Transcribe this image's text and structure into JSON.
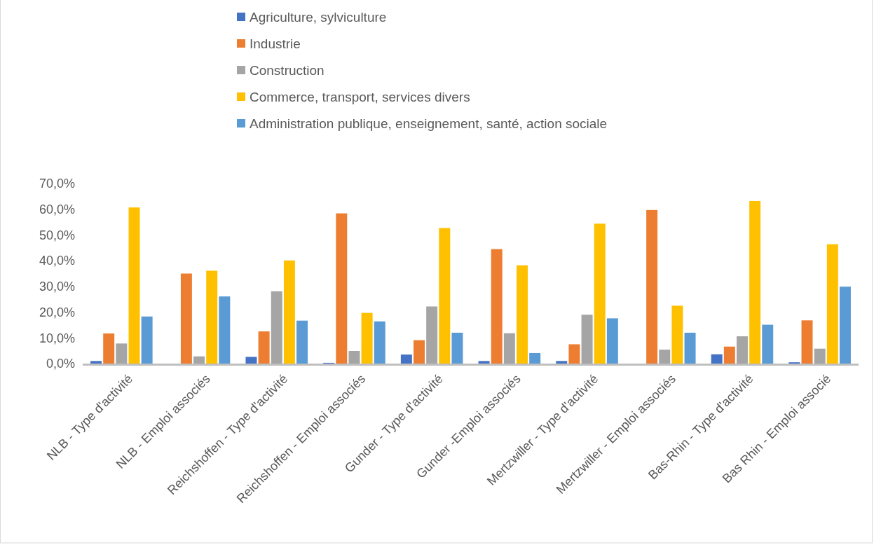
{
  "chart_data": {
    "type": "bar",
    "categories": [
      "NLB - Type d'activité",
      "NLB - Emploi associés",
      "Reichshoffen - Type d'activité",
      "Reichshoffen - Emploi associés",
      "Gunder - Type d'activité",
      "Gunder -Emploi associés",
      "Mertzwiller - Type d'activité",
      "Mertzwiller - Emploi associés",
      "Bas-Rhin - Type d'activité",
      "Bas Rhin - Emploi associé"
    ],
    "series": [
      {
        "name": "Agriculture, sylviculture",
        "color": "#4472c4",
        "values": [
          1.0,
          0,
          2.6,
          0.3,
          3.5,
          1.0,
          1.0,
          0,
          3.6,
          0.5
        ]
      },
      {
        "name": "Industrie",
        "color": "#ed7d31",
        "values": [
          11.7,
          35.0,
          12.5,
          58.4,
          9.1,
          44.5,
          7.5,
          59.7,
          6.6,
          16.8
        ]
      },
      {
        "name": "Construction",
        "color": "#a5a5a5",
        "values": [
          7.8,
          2.8,
          28.1,
          4.9,
          22.2,
          11.8,
          19.0,
          5.4,
          10.6,
          5.8
        ]
      },
      {
        "name": "Commerce, transport, services divers",
        "color": "#ffc000",
        "values": [
          60.7,
          36.1,
          40.1,
          19.7,
          52.7,
          38.2,
          54.4,
          22.5,
          63.2,
          46.4
        ]
      },
      {
        "name": "Administration publique, enseignement, santé, action sociale",
        "color": "#5b9bd5",
        "values": [
          18.3,
          26.1,
          16.7,
          16.4,
          12.0,
          4.1,
          17.6,
          12.0,
          15.1,
          29.9
        ]
      }
    ],
    "ylim": [
      0,
      70
    ],
    "yticks": [
      {
        "value": 0,
        "label": "0,0%"
      },
      {
        "value": 10,
        "label": "10,0%"
      },
      {
        "value": 20,
        "label": "20,0%"
      },
      {
        "value": 30,
        "label": "30,0%"
      },
      {
        "value": 40,
        "label": "40,0%"
      },
      {
        "value": 50,
        "label": "50,0%"
      },
      {
        "value": 60,
        "label": "60,0%"
      },
      {
        "value": 70,
        "label": "70,0%"
      }
    ],
    "grid": false,
    "legend": "top"
  }
}
